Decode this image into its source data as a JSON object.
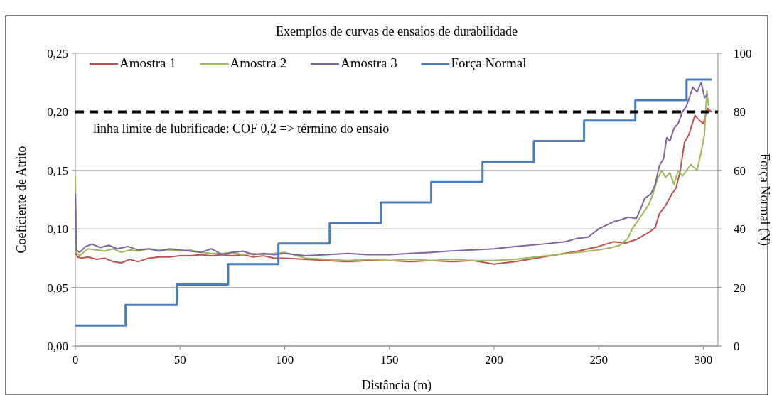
{
  "chart_data": {
    "type": "line",
    "title": "Exemplos de curvas de ensaios de durabilidade",
    "xlabel": "Distância (m)",
    "ylabel": "Coeficiente de Atrito",
    "y2label": "Força Normal (N)",
    "xlim": [
      0,
      307
    ],
    "xticks": [
      0,
      50,
      100,
      150,
      200,
      250,
      300
    ],
    "ylim": [
      0,
      0.25
    ],
    "yticks": [
      {
        "value": 0,
        "label": "0,00"
      },
      {
        "value": 0.05,
        "label": "0,05"
      },
      {
        "value": 0.1,
        "label": "0,10"
      },
      {
        "value": 0.15,
        "label": "0,15"
      },
      {
        "value": 0.2,
        "label": "0,20"
      },
      {
        "value": 0.25,
        "label": "0,25"
      }
    ],
    "y2lim": [
      0,
      100
    ],
    "y2ticks": [
      0,
      20,
      40,
      60,
      80,
      100
    ],
    "grid": "y",
    "legend": "top",
    "line_style": "solid",
    "ref_lines": [
      {
        "axis": "y",
        "value": 0.2,
        "label": "linha limite de lubrificade: COF 0,2 => término do ensaio",
        "color": "#000000",
        "line_style": "dashed"
      }
    ],
    "series": [
      {
        "name": "Amostra 1",
        "color": "#c0504d",
        "x": [
          0,
          1,
          3,
          6,
          10,
          14,
          18,
          22,
          26,
          30,
          35,
          40,
          45,
          50,
          55,
          60,
          65,
          70,
          75,
          80,
          85,
          90,
          95,
          100,
          110,
          120,
          130,
          140,
          150,
          160,
          170,
          180,
          190,
          200,
          210,
          220,
          230,
          240,
          250,
          257,
          263,
          268,
          271,
          274,
          277,
          279,
          282,
          285,
          287,
          289,
          291,
          293,
          296,
          298,
          300,
          302,
          304
        ],
        "values": [
          0.08,
          0.076,
          0.075,
          0.076,
          0.074,
          0.075,
          0.072,
          0.071,
          0.074,
          0.072,
          0.075,
          0.076,
          0.076,
          0.077,
          0.077,
          0.078,
          0.077,
          0.078,
          0.077,
          0.078,
          0.076,
          0.077,
          0.075,
          0.075,
          0.074,
          0.073,
          0.072,
          0.073,
          0.073,
          0.072,
          0.073,
          0.072,
          0.073,
          0.07,
          0.072,
          0.075,
          0.078,
          0.081,
          0.085,
          0.089,
          0.088,
          0.091,
          0.094,
          0.097,
          0.101,
          0.113,
          0.12,
          0.13,
          0.135,
          0.15,
          0.174,
          0.18,
          0.197,
          0.193,
          0.19,
          0.203,
          0.2
        ]
      },
      {
        "name": "Amostra 2",
        "color": "#9bbb59",
        "x": [
          0,
          0.5,
          2,
          6,
          10,
          14,
          18,
          22,
          26,
          30,
          35,
          40,
          45,
          50,
          55,
          60,
          65,
          70,
          75,
          80,
          85,
          90,
          95,
          100,
          110,
          120,
          130,
          140,
          150,
          160,
          170,
          180,
          190,
          200,
          210,
          220,
          230,
          240,
          250,
          256,
          260,
          264,
          266,
          268,
          271,
          274,
          276,
          278,
          280,
          282,
          284,
          286,
          288,
          290,
          292,
          294,
          297,
          299,
          300.5,
          301.7,
          302.5
        ],
        "values": [
          0.145,
          0.08,
          0.077,
          0.083,
          0.082,
          0.081,
          0.083,
          0.08,
          0.082,
          0.081,
          0.083,
          0.082,
          0.082,
          0.081,
          0.082,
          0.08,
          0.079,
          0.079,
          0.08,
          0.078,
          0.079,
          0.078,
          0.079,
          0.08,
          0.075,
          0.074,
          0.073,
          0.074,
          0.073,
          0.074,
          0.073,
          0.074,
          0.073,
          0.073,
          0.074,
          0.076,
          0.078,
          0.08,
          0.082,
          0.084,
          0.086,
          0.092,
          0.1,
          0.105,
          0.113,
          0.121,
          0.13,
          0.142,
          0.15,
          0.144,
          0.148,
          0.138,
          0.15,
          0.145,
          0.15,
          0.155,
          0.15,
          0.166,
          0.18,
          0.218,
          0.205
        ]
      },
      {
        "name": "Amostra 3",
        "color": "#8064a2",
        "x": [
          0,
          0.5,
          2,
          5,
          8,
          12,
          16,
          20,
          25,
          30,
          35,
          40,
          45,
          50,
          55,
          60,
          65,
          70,
          75,
          80,
          85,
          90,
          95,
          100,
          110,
          120,
          130,
          140,
          150,
          160,
          170,
          178,
          190,
          200,
          210,
          223,
          234,
          240,
          245,
          250,
          257,
          261,
          264,
          268,
          270,
          272,
          275,
          277,
          279,
          281,
          282.5,
          284,
          286,
          288,
          290,
          292,
          295,
          297,
          299,
          300.6,
          302
        ],
        "values": [
          0.13,
          0.082,
          0.08,
          0.085,
          0.087,
          0.084,
          0.086,
          0.083,
          0.085,
          0.082,
          0.083,
          0.081,
          0.083,
          0.082,
          0.081,
          0.08,
          0.083,
          0.078,
          0.08,
          0.081,
          0.078,
          0.079,
          0.078,
          0.079,
          0.077,
          0.078,
          0.079,
          0.078,
          0.078,
          0.079,
          0.08,
          0.081,
          0.082,
          0.083,
          0.085,
          0.087,
          0.089,
          0.092,
          0.093,
          0.1,
          0.106,
          0.108,
          0.11,
          0.109,
          0.117,
          0.126,
          0.13,
          0.138,
          0.154,
          0.16,
          0.178,
          0.175,
          0.186,
          0.19,
          0.2,
          0.205,
          0.221,
          0.217,
          0.225,
          0.212,
          0.215
        ]
      },
      {
        "name": "Força Normal",
        "color": "#4a7ebb",
        "type": "step",
        "axis": "y2",
        "x": [
          0,
          24,
          48.5,
          73,
          97,
          121.5,
          146,
          170,
          194.5,
          219,
          243,
          267.5,
          292,
          304
        ],
        "values": [
          7,
          14,
          21,
          28,
          35,
          42,
          49,
          56,
          63,
          70,
          77,
          84,
          91,
          91
        ]
      }
    ]
  }
}
